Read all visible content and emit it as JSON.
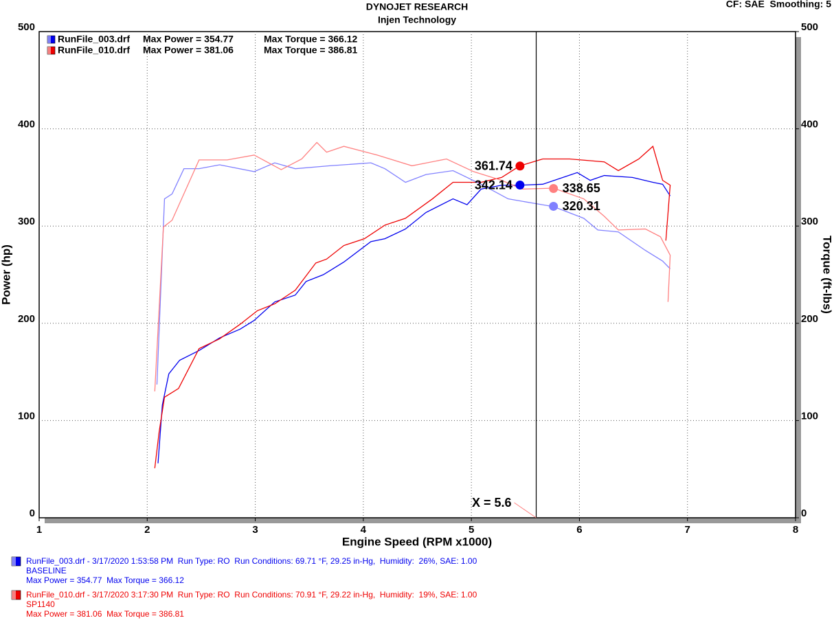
{
  "cf_label": "CF: SAE  Smoothing: 5",
  "chart_data": {
    "type": "line",
    "title": "DYNOJET RESEARCH",
    "subtitle": "Injen Technology",
    "xlabel": "Engine Speed (RPM x1000)",
    "ylabel": "Power (hp)",
    "y2label": "Torque (ft-lbs)",
    "xlim": [
      1,
      8
    ],
    "ylim": [
      0,
      500
    ],
    "y2lim": [
      0,
      500
    ],
    "xticks": [
      1,
      2,
      3,
      4,
      5,
      6,
      7,
      8
    ],
    "yticks": [
      0,
      100,
      200,
      300,
      400,
      500
    ],
    "y2ticks": [
      0,
      100,
      200,
      300,
      400,
      500
    ],
    "grid": true,
    "legend_notes": [
      [
        "Max Power = 354.77",
        "Max Torque = 366.12"
      ],
      [
        "Max Power = 381.06",
        "Max Torque = 386.81"
      ]
    ],
    "series": [
      {
        "name": "RunFile_003.drf",
        "color": "#0000ee",
        "x": [
          2.1,
          2.14,
          2.2,
          2.3,
          2.48,
          2.67,
          2.86,
          2.99,
          3.18,
          3.37,
          3.47,
          3.63,
          3.82,
          4.07,
          4.2,
          4.39,
          4.58,
          4.83,
          4.96,
          5.09,
          5.28,
          5.45,
          5.66,
          5.98,
          6.1,
          6.23,
          6.49,
          6.68,
          6.77,
          6.84
        ],
        "values": [
          56,
          116,
          148,
          162,
          172,
          185,
          194,
          203,
          222,
          229,
          243,
          250,
          263,
          284,
          287,
          297,
          314,
          328,
          322,
          338,
          342,
          342,
          343,
          355,
          347,
          352,
          350,
          345,
          343,
          331
        ]
      },
      {
        "name": "RunFile_010.drf",
        "color": "#ee0000",
        "x": [
          2.07,
          2.11,
          2.16,
          2.29,
          2.48,
          2.67,
          2.86,
          3.02,
          3.18,
          3.37,
          3.56,
          3.66,
          3.82,
          4.01,
          4.2,
          4.39,
          4.64,
          4.83,
          5.09,
          5.28,
          5.45,
          5.66,
          5.91,
          6.23,
          6.36,
          6.55,
          6.68,
          6.77,
          6.84,
          6.8
        ],
        "values": [
          51,
          88,
          124,
          133,
          174,
          184,
          199,
          213,
          220,
          234,
          262,
          266,
          280,
          287,
          301,
          308,
          328,
          345,
          345,
          350,
          362,
          369,
          369,
          366,
          357,
          369,
          382,
          347,
          342,
          285
        ]
      },
      {
        "color": "#8080ff",
        "axis": "y2",
        "x": [
          2.09,
          2.16,
          2.23,
          2.34,
          2.48,
          2.67,
          2.99,
          3.18,
          3.37,
          3.69,
          4.07,
          4.2,
          4.39,
          4.58,
          4.83,
          5.09,
          5.34,
          5.6,
          5.76,
          6.04,
          6.17,
          6.36,
          6.61,
          6.77,
          6.84
        ],
        "values": [
          137,
          328,
          333,
          359,
          359,
          363,
          356,
          365,
          359,
          362,
          365,
          359,
          345,
          353,
          357,
          343,
          328,
          323,
          320,
          308,
          296,
          294,
          275,
          264,
          256
        ]
      },
      {
        "color": "#ff8080",
        "axis": "y2",
        "x": [
          2.07,
          2.15,
          2.23,
          2.48,
          2.74,
          2.99,
          3.24,
          3.43,
          3.57,
          3.66,
          3.82,
          4.13,
          4.45,
          4.77,
          5.02,
          5.28,
          5.47,
          5.76,
          6.04,
          6.23,
          6.36,
          6.61,
          6.75,
          6.84,
          6.82
        ],
        "values": [
          130,
          299,
          306,
          368,
          368,
          373,
          358,
          369,
          386,
          376,
          382,
          373,
          362,
          369,
          356,
          347,
          338,
          339,
          328,
          310,
          296,
          297,
          289,
          270,
          222
        ]
      }
    ],
    "cursor": {
      "x": 5.6,
      "label": "X = 5.6"
    },
    "markers": [
      {
        "x": 5.45,
        "value": 361.74,
        "color": "#ee0000"
      },
      {
        "x": 5.45,
        "value": 342.14,
        "color": "#0000ee"
      },
      {
        "x": 5.76,
        "value": 338.65,
        "color": "#ff8080",
        "axis": "y2"
      },
      {
        "x": 5.76,
        "value": 320.31,
        "color": "#8080ff",
        "axis": "y2"
      }
    ]
  },
  "footer": [
    {
      "color": "#0000ee",
      "lines": [
        "RunFile_003.drf - 3/17/2020 1:53:58 PM  Run Type: RO  Run Conditions: 69.71 °F, 29.25 in-Hg,  Humidity:  26%, SAE: 1.00",
        "BASELINE",
        "Max Power = 354.77  Max Torque = 366.12"
      ]
    },
    {
      "color": "#ee0000",
      "lines": [
        "RunFile_010.drf - 3/17/2020 3:17:30 PM  Run Type: RO  Run Conditions: 70.91 °F, 29.22 in-Hg,  Humidity:  19%, SAE: 1.00",
        "SP1140",
        "Max Power = 381.06  Max Torque = 386.81"
      ]
    }
  ]
}
